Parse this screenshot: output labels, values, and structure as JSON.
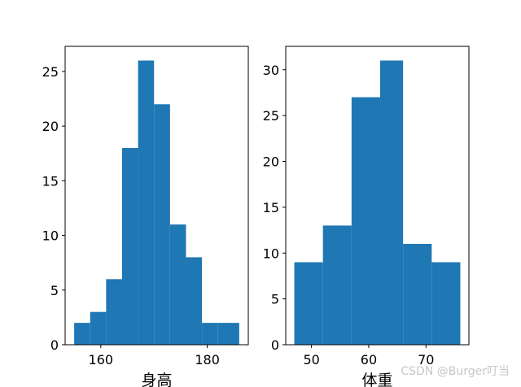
{
  "chart_data": [
    {
      "type": "bar",
      "title": "",
      "xlabel": "身高",
      "ylabel": "",
      "bin_edges": [
        155,
        158,
        161,
        164,
        167,
        170,
        173,
        176,
        179,
        182,
        186
      ],
      "values": [
        2,
        3,
        6,
        18,
        26,
        22,
        11,
        8,
        2,
        2
      ],
      "xlim": [
        153.3,
        187.7
      ],
      "ylim": [
        0,
        27.3
      ],
      "xticks": [
        160,
        180
      ],
      "yticks": [
        0,
        5,
        10,
        15,
        20,
        25
      ],
      "grid": false,
      "color": "#1f77b4"
    },
    {
      "type": "bar",
      "title": "",
      "xlabel": "体重",
      "ylabel": "",
      "bin_edges": [
        47,
        52,
        57,
        62,
        66,
        71,
        76
      ],
      "values": [
        9,
        13,
        27,
        31,
        11,
        9
      ],
      "xlim": [
        45.5,
        77.5
      ],
      "ylim": [
        0,
        32.55
      ],
      "xticks": [
        50,
        60,
        70
      ],
      "yticks": [
        0,
        5,
        10,
        15,
        20,
        25,
        30
      ],
      "grid": false,
      "color": "#1f77b4"
    }
  ],
  "watermark": "CSDN @Burger叮当"
}
